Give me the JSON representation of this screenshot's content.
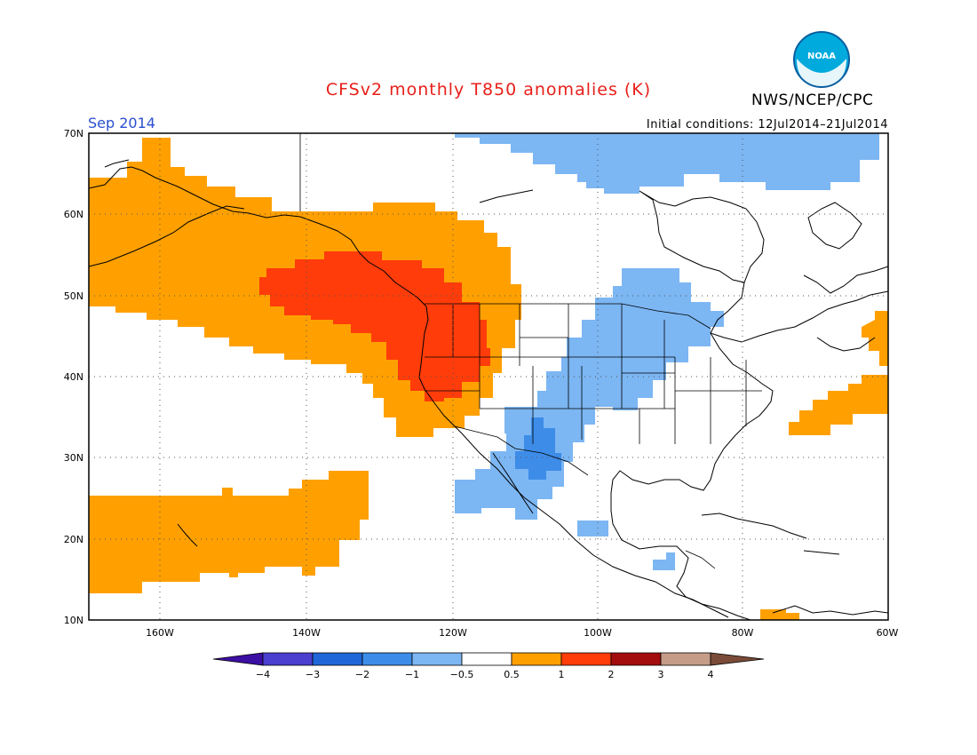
{
  "title": "CFSv2 monthly T850 anomalies (K)",
  "agency": "NWS/NCEP/CPC",
  "logo_text": "NOAA",
  "valid_month": "Sep 2014",
  "initial_conditions": "Initial conditions: 12Jul2014–21Jul2014",
  "map": {
    "lon_range": [
      -170,
      -60
    ],
    "lat_range": [
      10,
      70
    ],
    "lon_ticks": [
      "160W",
      "140W",
      "120W",
      "100W",
      "80W",
      "60W"
    ],
    "lat_ticks": [
      "70N",
      "60N",
      "50N",
      "40N",
      "30N",
      "20N",
      "10N"
    ],
    "grid": "dotted"
  },
  "colorbar": {
    "labels": [
      "−4",
      "−3",
      "−2",
      "−1",
      "−0.5",
      "0.5",
      "1",
      "2",
      "3",
      "4"
    ],
    "colors": [
      "#3c0fa3",
      "#4a3fcf",
      "#2066d8",
      "#3d8ce8",
      "#7cb6f3",
      "#ffffff",
      "#ffa000",
      "#ff3d0a",
      "#a30d0d",
      "#c49c88",
      "#7a4b38"
    ]
  },
  "palette": {
    "warm1": "#ffa000",
    "warm2": "#ff3c0a",
    "cool1": "#7cb6f3",
    "cool2": "#3d8ce8"
  }
}
